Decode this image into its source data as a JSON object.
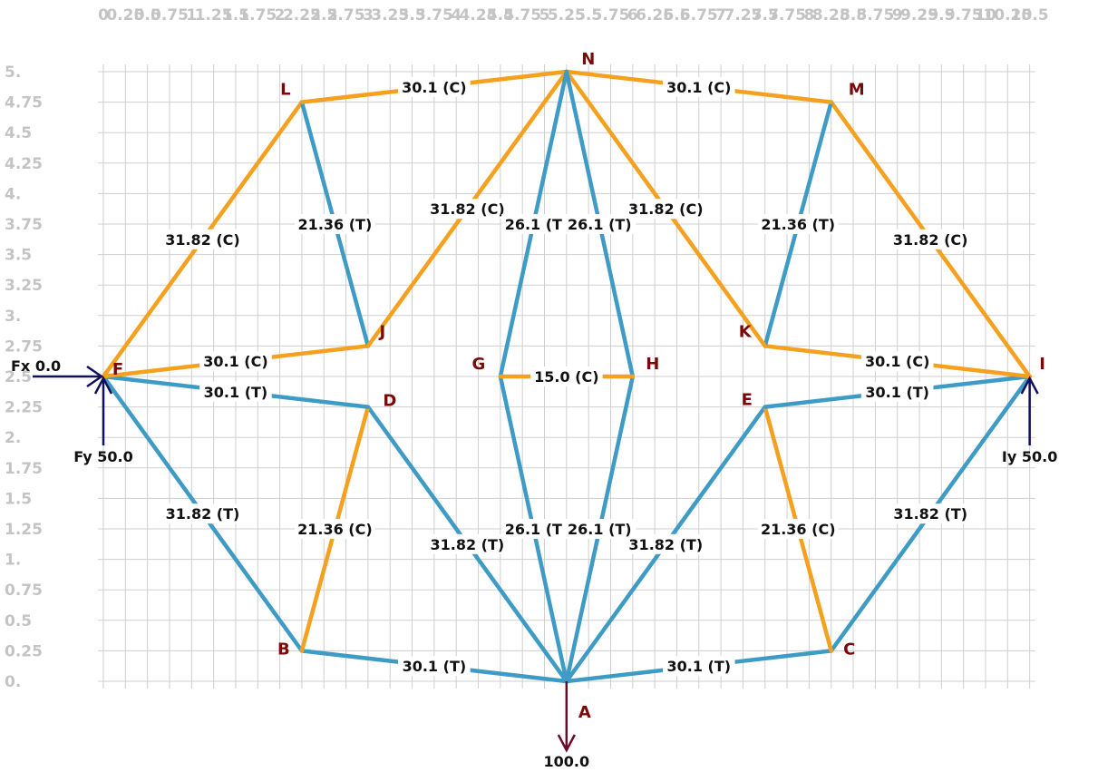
{
  "colors": {
    "tension": "#3e9bc6",
    "compression": "#f5a01e",
    "grid": "#cfcfcf",
    "tick": "#c4c4c4",
    "node_label": "#7a0a0a",
    "reaction_arrow": "#101060",
    "load_arrow": "#6a0a2a"
  },
  "axes": {
    "x_tick_labels": [
      "0",
      "0.25",
      "0.5",
      "0.75",
      "1",
      "1.25",
      "1.5",
      "1.75",
      "2",
      "2.25",
      "2.5",
      "2.75",
      "3",
      "3.25",
      "3.5",
      "3.75",
      "4",
      "4.25",
      "4.5",
      "4.75",
      "5",
      "5.25",
      "5.5",
      "5.75",
      "6",
      "6.25",
      "6.5",
      "6.75",
      "7",
      "7.25",
      "7.5",
      "7.75",
      "8",
      "8.25",
      "8.5",
      "8.75",
      "9",
      "9.25",
      "9.5",
      "9.75",
      "10",
      "10.25",
      "10.5"
    ],
    "y_tick_labels": [
      "0.",
      "0.25",
      "0.5",
      "0.75",
      "1.",
      "1.25",
      "1.5",
      "1.75",
      "2.",
      "2.25",
      "2.5",
      "2.75",
      "3.",
      "3.25",
      "3.5",
      "3.75",
      "4.",
      "4.25",
      "4.5",
      "4.75",
      "5."
    ],
    "x_range": [
      0,
      10.5
    ],
    "y_range": [
      0,
      5
    ]
  },
  "nodes": [
    {
      "id": "A",
      "x": 5.25,
      "y": 0
    },
    {
      "id": "B",
      "x": 2.25,
      "y": 0.25
    },
    {
      "id": "C",
      "x": 8.25,
      "y": 0.25
    },
    {
      "id": "D",
      "x": 3.0,
      "y": 2.25
    },
    {
      "id": "E",
      "x": 7.5,
      "y": 2.25
    },
    {
      "id": "F",
      "x": 0.0,
      "y": 2.5
    },
    {
      "id": "G",
      "x": 4.5,
      "y": 2.5
    },
    {
      "id": "H",
      "x": 6.0,
      "y": 2.5
    },
    {
      "id": "I",
      "x": 10.5,
      "y": 2.5
    },
    {
      "id": "J",
      "x": 3.0,
      "y": 2.75
    },
    {
      "id": "K",
      "x": 7.5,
      "y": 2.75
    },
    {
      "id": "L",
      "x": 2.25,
      "y": 4.75
    },
    {
      "id": "M",
      "x": 8.25,
      "y": 4.75
    },
    {
      "id": "N",
      "x": 5.25,
      "y": 5.0
    }
  ],
  "members": [
    {
      "from": "A",
      "to": "B",
      "force": 30.1,
      "type": "T",
      "label": "30.1 (T)"
    },
    {
      "from": "A",
      "to": "C",
      "force": 30.1,
      "type": "T",
      "label": "30.1 (T)"
    },
    {
      "from": "A",
      "to": "D",
      "force": 31.82,
      "type": "T",
      "label": "31.82 (T)"
    },
    {
      "from": "A",
      "to": "E",
      "force": 31.82,
      "type": "T",
      "label": "31.82 (T)"
    },
    {
      "from": "A",
      "to": "G",
      "force": 26.1,
      "type": "T",
      "label": "26.1 (T"
    },
    {
      "from": "A",
      "to": "H",
      "force": 26.1,
      "type": "T",
      "label": "26.1 (T)"
    },
    {
      "from": "B",
      "to": "F",
      "force": 31.82,
      "type": "T",
      "label": "31.82 (T)"
    },
    {
      "from": "C",
      "to": "I",
      "force": 31.82,
      "type": "T",
      "label": "31.82 (T)"
    },
    {
      "from": "B",
      "to": "D",
      "force": 21.36,
      "type": "C",
      "label": "21.36 (C)"
    },
    {
      "from": "C",
      "to": "E",
      "force": 21.36,
      "type": "C",
      "label": "21.36 (C)"
    },
    {
      "from": "F",
      "to": "D",
      "force": 30.1,
      "type": "T",
      "label": "30.1 (T)"
    },
    {
      "from": "I",
      "to": "E",
      "force": 30.1,
      "type": "T",
      "label": "30.1 (T)"
    },
    {
      "from": "F",
      "to": "J",
      "force": 30.1,
      "type": "C",
      "label": "30.1 (C)"
    },
    {
      "from": "I",
      "to": "K",
      "force": 30.1,
      "type": "C",
      "label": "30.1 (C)"
    },
    {
      "from": "F",
      "to": "L",
      "force": 31.82,
      "type": "C",
      "label": "31.82 (C)"
    },
    {
      "from": "I",
      "to": "M",
      "force": 31.82,
      "type": "C",
      "label": "31.82 (C)"
    },
    {
      "from": "L",
      "to": "J",
      "force": 21.36,
      "type": "T",
      "label": "21.36 (T)"
    },
    {
      "from": "M",
      "to": "K",
      "force": 21.36,
      "type": "T",
      "label": "21.36 (T)"
    },
    {
      "from": "L",
      "to": "N",
      "force": 30.1,
      "type": "C",
      "label": "30.1 (C)"
    },
    {
      "from": "M",
      "to": "N",
      "force": 30.1,
      "type": "C",
      "label": "30.1 (C)"
    },
    {
      "from": "J",
      "to": "N",
      "force": 31.82,
      "type": "C",
      "label": "31.82 (C)"
    },
    {
      "from": "K",
      "to": "N",
      "force": 31.82,
      "type": "C",
      "label": "31.82 (C)"
    },
    {
      "from": "G",
      "to": "N",
      "force": 26.1,
      "type": "T",
      "label": "26.1 (T"
    },
    {
      "from": "H",
      "to": "N",
      "force": 26.1,
      "type": "T",
      "label": "26.1 (T)"
    },
    {
      "from": "G",
      "to": "H",
      "force": 15.0,
      "type": "C",
      "label": "15.0 (C)"
    }
  ],
  "reactions": [
    {
      "label": "Fx 0.0",
      "node": "F",
      "direction": "horizontal"
    },
    {
      "label": "Fy 50.0",
      "node": "F",
      "direction": "up"
    },
    {
      "label": "Iy 50.0",
      "node": "I",
      "direction": "up"
    }
  ],
  "load": {
    "label": "100.0",
    "node": "A",
    "direction": "down"
  }
}
